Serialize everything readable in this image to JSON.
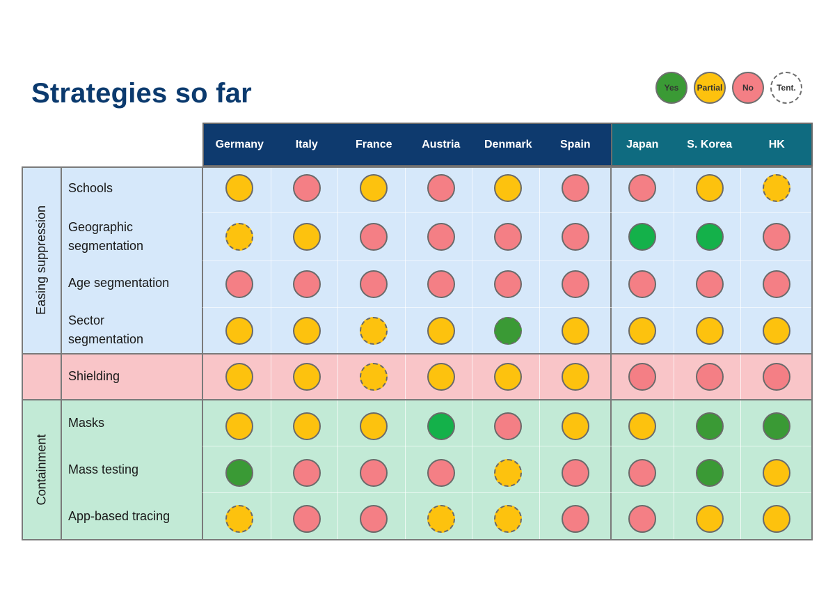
{
  "title": "Strategies so far",
  "colors": {
    "yes": "#3a9a35",
    "yes_bright": "#14b14a",
    "partial": "#fdc20e",
    "no": "#f47f85",
    "no_dark": "#ee7d84"
  },
  "legend": [
    {
      "label": "Yes",
      "status": "yes",
      "color": "#3a9a35"
    },
    {
      "label": "Partial",
      "status": "partial",
      "color": "#fdc20e"
    },
    {
      "label": "No",
      "status": "no",
      "color": "#f47f85"
    },
    {
      "label": "Tent.",
      "status": "tentative",
      "color": "#ffffff"
    }
  ],
  "countries": [
    "Germany",
    "Italy",
    "France",
    "Austria",
    "Denmark",
    "Spain",
    "Japan",
    "S. Korea",
    "HK"
  ],
  "groups": [
    {
      "label": "Easing suppression"
    },
    {
      "label": ""
    },
    {
      "label": "Containment"
    }
  ],
  "rows": [
    {
      "label": "Schools",
      "group": 0,
      "cells": [
        [
          "partial",
          0
        ],
        [
          "no",
          0
        ],
        [
          "partial",
          0
        ],
        [
          "no",
          0
        ],
        [
          "partial",
          0
        ],
        [
          "no",
          0
        ],
        [
          "no",
          0
        ],
        [
          "partial",
          0
        ],
        [
          "partial",
          1
        ]
      ]
    },
    {
      "label": "Geographic segmentation",
      "group": 0,
      "cells": [
        [
          "partial",
          1
        ],
        [
          "partial",
          0
        ],
        [
          "no",
          0
        ],
        [
          "no",
          0
        ],
        [
          "no",
          0
        ],
        [
          "no",
          0
        ],
        [
          "yesb",
          0
        ],
        [
          "yesb",
          0
        ],
        [
          "no",
          0
        ]
      ]
    },
    {
      "label": "Age segmentation",
      "group": 0,
      "cells": [
        [
          "no",
          0
        ],
        [
          "no",
          0
        ],
        [
          "no",
          0
        ],
        [
          "no",
          0
        ],
        [
          "no",
          0
        ],
        [
          "no",
          0
        ],
        [
          "no",
          0
        ],
        [
          "no",
          0
        ],
        [
          "no",
          0
        ]
      ]
    },
    {
      "label": "Sector segmentation",
      "group": 0,
      "cells": [
        [
          "partial",
          0
        ],
        [
          "partial",
          0
        ],
        [
          "partial",
          1
        ],
        [
          "partial",
          0
        ],
        [
          "yes",
          1
        ],
        [
          "partial",
          0
        ],
        [
          "partial",
          0
        ],
        [
          "partial",
          0
        ],
        [
          "partial",
          0
        ]
      ]
    },
    {
      "label": "Shielding",
      "group": 1,
      "cells": [
        [
          "partial",
          0
        ],
        [
          "partial",
          0
        ],
        [
          "partial",
          1
        ],
        [
          "partial",
          0
        ],
        [
          "partial",
          0
        ],
        [
          "partial",
          0
        ],
        [
          "no",
          0
        ],
        [
          "no",
          0
        ],
        [
          "no",
          0
        ]
      ]
    },
    {
      "label": "Masks",
      "group": 2,
      "cells": [
        [
          "partial",
          0
        ],
        [
          "partial",
          0
        ],
        [
          "partial",
          0
        ],
        [
          "yesb",
          0
        ],
        [
          "no",
          0
        ],
        [
          "partial",
          0
        ],
        [
          "partial",
          0
        ],
        [
          "yes",
          0
        ],
        [
          "yes",
          0
        ]
      ]
    },
    {
      "label": "Mass testing",
      "group": 2,
      "cells": [
        [
          "yes",
          0
        ],
        [
          "no",
          0
        ],
        [
          "no",
          0
        ],
        [
          "no",
          0
        ],
        [
          "partial",
          1
        ],
        [
          "no",
          0
        ],
        [
          "no",
          0
        ],
        [
          "yes",
          0
        ],
        [
          "partial",
          0
        ]
      ]
    },
    {
      "label": "App-based tracing",
      "group": 2,
      "cells": [
        [
          "partial",
          1
        ],
        [
          "no",
          0
        ],
        [
          "no",
          0
        ],
        [
          "partial",
          1
        ],
        [
          "partial",
          1
        ],
        [
          "no",
          0
        ],
        [
          "no",
          0
        ],
        [
          "partial",
          0
        ],
        [
          "partial",
          0
        ]
      ]
    }
  ]
}
